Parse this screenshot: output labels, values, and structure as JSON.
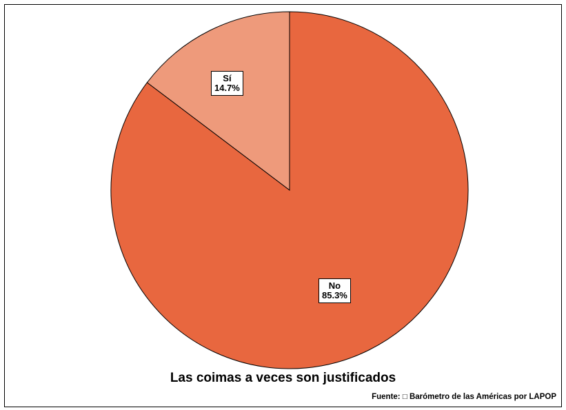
{
  "chart_data": {
    "type": "pie",
    "title": "Las coimas a veces son justificados",
    "source": "Fuente: □ Barómetro de las Américas por LAPOP",
    "slices": [
      {
        "label": "Sí",
        "value": 14.7,
        "display": "14.7%",
        "color": "#ee9a7b"
      },
      {
        "label": "No",
        "value": 85.3,
        "display": "85.3%",
        "color": "#e8673f"
      }
    ]
  }
}
